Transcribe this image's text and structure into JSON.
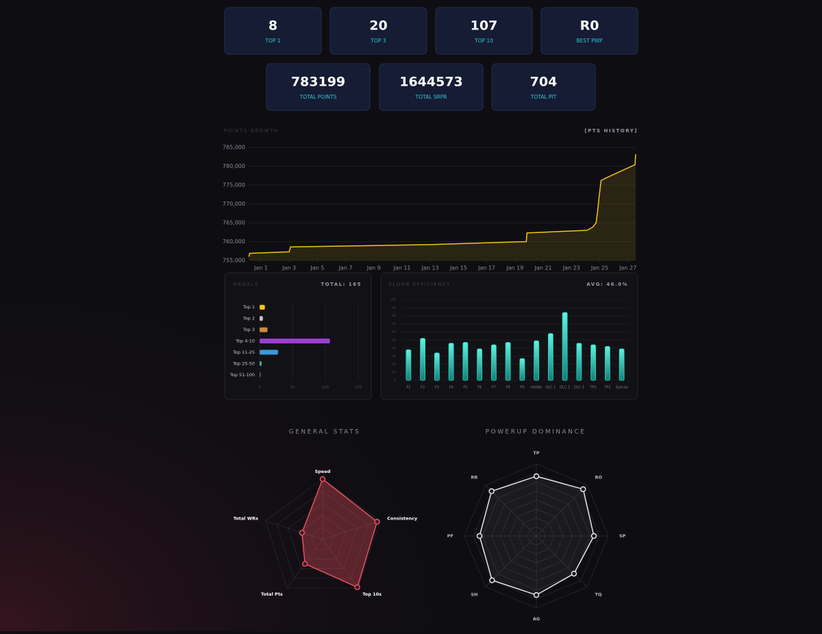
{
  "stats": [
    {
      "value": 8,
      "label": "TOP 1"
    },
    {
      "value": 20,
      "label": "TOP 3"
    },
    {
      "value": 107,
      "label": "TOP 10"
    },
    {
      "value": "R0",
      "label": "BEST PWP"
    },
    {
      "value": 783199,
      "label": "TOTAL POINTS"
    },
    {
      "value": 1644573,
      "label": "TOTAL SRPR"
    },
    {
      "value": 704,
      "label": "TOTAL PIT"
    }
  ],
  "chart_data": [
    {
      "type": "line",
      "title": "POINTS GROWTH",
      "subtitle": "[PTS HISTORY]",
      "x": [
        0.15,
        0.2,
        3.0,
        3.1,
        8,
        13,
        19.8,
        19.85,
        24.1,
        24.5,
        24.75,
        24.85,
        24.95,
        25.1,
        25.4,
        27.5,
        27.55
      ],
      "values": [
        756000,
        756900,
        757300,
        758600,
        758900,
        759200,
        760000,
        762300,
        763000,
        763800,
        765000,
        768000,
        771500,
        776200,
        776800,
        780400,
        783199
      ],
      "color": "#f5c518",
      "grid": true,
      "xlim": [
        0.13,
        27.55
      ],
      "xticks": [
        {
          "value": 1,
          "label": "Jan 1"
        },
        {
          "value": 3,
          "label": "Jan 3"
        },
        {
          "value": 5,
          "label": "Jan 5"
        },
        {
          "value": 7,
          "label": "Jan 7"
        },
        {
          "value": 9,
          "label": "Jan 9"
        },
        {
          "value": 11,
          "label": "Jan 11"
        },
        {
          "value": 13,
          "label": "Jan 13"
        },
        {
          "value": 15,
          "label": "Jan 15"
        },
        {
          "value": 17,
          "label": "Jan 17"
        },
        {
          "value": 19,
          "label": "Jan 19"
        },
        {
          "value": 21,
          "label": "Jan 21"
        },
        {
          "value": 23,
          "label": "Jan 23"
        },
        {
          "value": 25,
          "label": "Jan 25"
        },
        {
          "value": 27,
          "label": "Jan 27"
        }
      ],
      "ylim": [
        755000,
        785000
      ],
      "yticks": [
        {
          "value": 755000,
          "label": "755,000"
        },
        {
          "value": 760000,
          "label": "760,000"
        },
        {
          "value": 765000,
          "label": "765,000"
        },
        {
          "value": 770000,
          "label": "770,000"
        },
        {
          "value": 775000,
          "label": "775,000"
        },
        {
          "value": 780000,
          "label": "780,000"
        },
        {
          "value": 785000,
          "label": "785,000"
        }
      ]
    },
    {
      "type": "hbar",
      "title": "MEDALS",
      "subtitle": "TOTAL: 165",
      "categories": [
        "Top 1",
        "Top 2",
        "Top 3",
        "Top 4-10",
        "Top 11-25",
        "Top 25-50",
        "Top 51-100"
      ],
      "values": [
        8,
        5,
        12,
        107,
        28,
        3,
        2
      ],
      "colors": [
        "#f5c518",
        "#c4c4cc",
        "#d08a35",
        "#9b3fd0",
        "#3a9ad9",
        "#2ab7a9",
        "#55555c"
      ],
      "xlim": [
        0,
        150
      ],
      "xticks": [
        0,
        50,
        100,
        150
      ],
      "grid": true
    },
    {
      "type": "bar",
      "title": "FLOOR EFFICIENCY",
      "subtitle": "AVG: 46.0%",
      "categories": [
        "F1",
        "F2",
        "F3",
        "F4",
        "F5",
        "F6",
        "F7",
        "F8",
        "F9",
        "HellBu",
        "DLC 1",
        "DLC 2",
        "DLC 3",
        "TP1",
        "TP2",
        "Special"
      ],
      "values": [
        38,
        52,
        34,
        46,
        47,
        39,
        44,
        47,
        27,
        49,
        58,
        84,
        46,
        44,
        42,
        39
      ],
      "color": "#2dd4bf",
      "ylim": [
        0,
        100
      ],
      "yticks": [
        0,
        10,
        20,
        30,
        40,
        50,
        60,
        70,
        80,
        90,
        100
      ],
      "grid": true
    },
    {
      "type": "radar",
      "title": "GENERAL STATS",
      "categories": [
        "Speed",
        "Consistency",
        "Top 10s",
        "Total Pts",
        "Total WRs"
      ],
      "values": [
        100,
        95,
        98,
        50,
        36
      ],
      "rlim": [
        0,
        100
      ],
      "color": "#e8505f"
    },
    {
      "type": "radar",
      "title": "POWERUP DOMINANCE",
      "categories": [
        "TP",
        "RO",
        "SP",
        "TQ",
        "AG",
        "SH",
        "PF",
        "RR"
      ],
      "values": [
        83,
        92,
        80,
        74,
        82,
        87,
        79,
        88
      ],
      "rlim": [
        0,
        100
      ],
      "color": "#e8e8ec"
    }
  ]
}
